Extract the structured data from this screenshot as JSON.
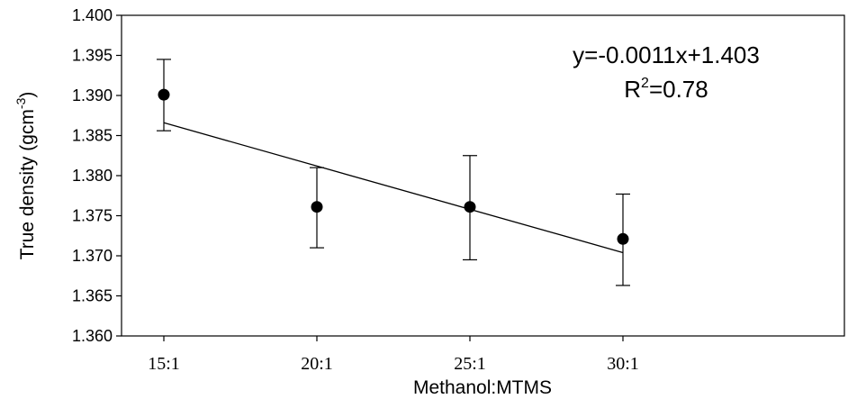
{
  "chart_data": {
    "type": "scatter",
    "categories": [
      "15:1",
      "20:1",
      "25:1",
      "30:1"
    ],
    "series": [
      {
        "values": [
          1.3901,
          1.3761,
          1.3761,
          1.3721
        ],
        "error_high": [
          1.3945,
          1.381,
          1.3825,
          1.3777
        ],
        "error_low": [
          1.3856,
          1.371,
          1.3695,
          1.3663
        ]
      }
    ],
    "trendline": {
      "start": 1.3866,
      "end": 1.3704
    },
    "xlabel": "Methanol:MTMS",
    "ylabel": "True density (gcm",
    "ylabel_sup": "-3",
    "ylabel_end": ")",
    "ylim": [
      1.36,
      1.4
    ],
    "yticks": [
      "1.360",
      "1.365",
      "1.370",
      "1.375",
      "1.380",
      "1.385",
      "1.390",
      "1.395",
      "1.400"
    ],
    "annotations": {
      "equation": "y=-0.0011x+1.403",
      "r2_prefix": "R",
      "r2_sup": "2",
      "r2_value": "=0.78"
    },
    "grid": false,
    "legend": "none"
  }
}
